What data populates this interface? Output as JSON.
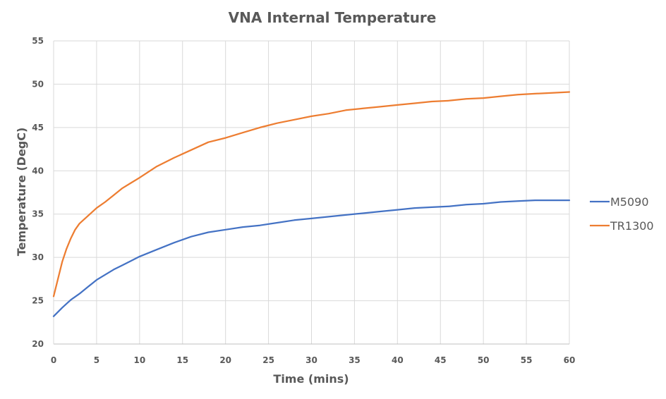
{
  "chart_data": {
    "type": "line",
    "title": "VNA Internal Temperature",
    "xlabel": "Time (mins)",
    "ylabel": "Temperature (DegC)",
    "xlim": [
      0,
      60
    ],
    "ylim": [
      20,
      55
    ],
    "x_ticks": [
      "0",
      "5",
      "10",
      "15",
      "20",
      "25",
      "30",
      "35",
      "40",
      "45",
      "50",
      "55",
      "60"
    ],
    "y_ticks": [
      "20",
      "25",
      "30",
      "35",
      "40",
      "45",
      "50",
      "55"
    ],
    "grid": true,
    "legend_position": "right",
    "series": [
      {
        "name": "M5090",
        "color": "#4472C4",
        "x": [
          0,
          1,
          2,
          3,
          4,
          5,
          6,
          7,
          8,
          9,
          10,
          12,
          14,
          16,
          18,
          20,
          22,
          24,
          26,
          28,
          30,
          32,
          34,
          36,
          38,
          40,
          42,
          44,
          46,
          48,
          50,
          52,
          54,
          56,
          58,
          60
        ],
        "y": [
          23.2,
          24.2,
          25.1,
          25.8,
          26.6,
          27.4,
          28.0,
          28.6,
          29.1,
          29.6,
          30.1,
          30.9,
          31.7,
          32.4,
          32.9,
          33.2,
          33.5,
          33.7,
          34.0,
          34.3,
          34.5,
          34.7,
          34.9,
          35.1,
          35.3,
          35.5,
          35.7,
          35.8,
          35.9,
          36.1,
          36.2,
          36.4,
          36.5,
          36.6,
          36.6,
          36.6
        ]
      },
      {
        "name": "TR1300",
        "color": "#ED7D31",
        "x": [
          0,
          0.5,
          1,
          1.5,
          2,
          2.5,
          3,
          4,
          5,
          6,
          7,
          8,
          9,
          10,
          12,
          14,
          16,
          18,
          20,
          22,
          24,
          26,
          28,
          30,
          32,
          34,
          36,
          38,
          40,
          42,
          44,
          46,
          48,
          50,
          52,
          54,
          56,
          58,
          60
        ],
        "y": [
          25.5,
          27.5,
          29.5,
          31.0,
          32.2,
          33.2,
          33.9,
          34.8,
          35.7,
          36.4,
          37.2,
          38.0,
          38.6,
          39.2,
          40.5,
          41.5,
          42.4,
          43.3,
          43.8,
          44.4,
          45.0,
          45.5,
          45.9,
          46.3,
          46.6,
          47.0,
          47.2,
          47.4,
          47.6,
          47.8,
          48.0,
          48.1,
          48.3,
          48.4,
          48.6,
          48.8,
          48.9,
          49.0,
          49.1
        ]
      }
    ]
  }
}
